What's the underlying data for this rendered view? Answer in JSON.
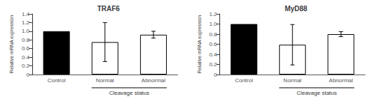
{
  "chart_data": [
    {
      "type": "bar",
      "title": "TRAF6",
      "categories": [
        "Control",
        "Normal",
        "Abnormal"
      ],
      "values": [
        1.0,
        0.75,
        0.92
      ],
      "errors": [
        0.0,
        0.45,
        0.08
      ],
      "colors": [
        "black",
        "white",
        "white"
      ],
      "ylabel": "Relative mRNA expression",
      "ylim": [
        0,
        1.4
      ],
      "yticks": [
        0,
        0.2,
        0.4,
        0.6,
        0.8,
        {
          "value": 1.0,
          "label": "1.0"
        },
        1.2,
        1.4
      ],
      "grid": false,
      "annotations": [
        {
          "text": "Cleavage status",
          "from": "Normal",
          "to": "Abnormal"
        }
      ]
    },
    {
      "type": "bar",
      "title": "MyD88",
      "categories": [
        "Control",
        "Normal",
        "Abnormal"
      ],
      "values": [
        1.0,
        0.59,
        0.8
      ],
      "errors": [
        0.0,
        0.4,
        0.05
      ],
      "colors": [
        "black",
        "white",
        "white"
      ],
      "ylabel": "Relative mRNA expression",
      "ylim": [
        0,
        1.2
      ],
      "yticks": [
        0,
        0.2,
        0.4,
        0.6,
        0.8,
        {
          "value": 1.0,
          "label": "1.0"
        },
        1.2
      ],
      "grid": false,
      "annotations": [
        {
          "text": "Cleavage status",
          "from": "Normal",
          "to": "Abnormal"
        }
      ]
    }
  ]
}
